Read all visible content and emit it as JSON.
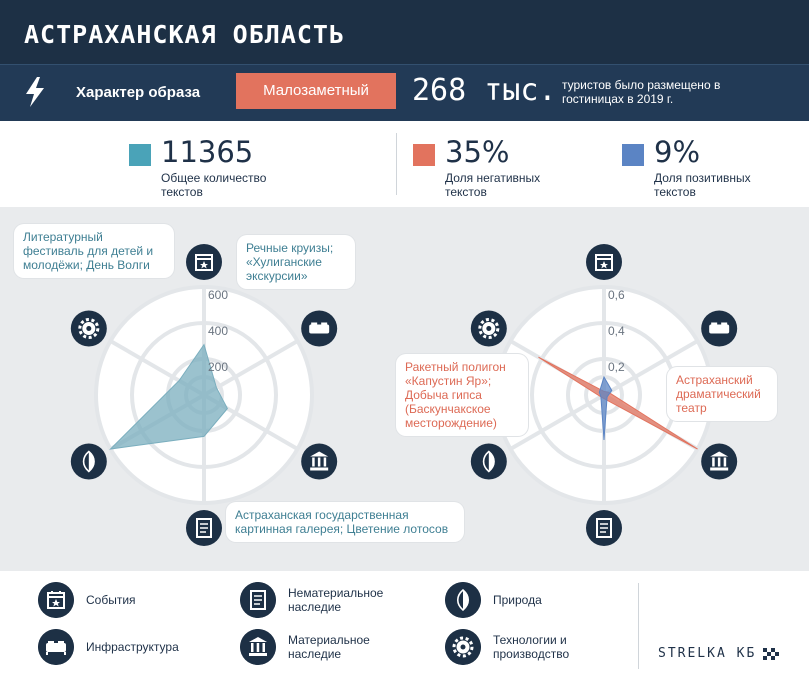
{
  "header": {
    "title": "АСТРАХАНСКАЯ ОБЛАСТЬ"
  },
  "character": {
    "label": "Характер образа",
    "value": "Малозаметный",
    "tourists_number": "268 тыс.",
    "tourists_text": "туристов было размещено в гостиницах в 2019 г."
  },
  "stats": [
    {
      "value": "11365",
      "label": "Общее количество текстов",
      "color": "#4aa3b8"
    },
    {
      "value": "35%",
      "label": "Доля негативных текстов",
      "color": "#e2735e"
    },
    {
      "value": "9%",
      "label": "Доля позитивных текстов",
      "color": "#5b84c4"
    }
  ],
  "chart_data": [
    {
      "type": "radar",
      "axes": [
        "События",
        "Инфраструктура",
        "Материальное наследие",
        "Нематериальное наследие",
        "Природа",
        "Технологии и производство"
      ],
      "rmax": 600,
      "ticks": [
        "200",
        "400",
        "600"
      ],
      "tick_values": [
        200,
        400,
        600
      ],
      "series": [
        {
          "values": [
            280,
            80,
            150,
            230,
            600,
            160
          ],
          "color": "#7aaebe"
        }
      ],
      "callouts": {
        "events": "Литературный фестиваль для детей и молодёжи; День Волги",
        "infrastructure": "Речные круизы; «Хулиганские экскурсии»",
        "intangible": "Астраханская государственная картинная галерея; Цветение лотосов"
      }
    },
    {
      "type": "radar",
      "axes": [
        "События",
        "Инфраструктура",
        "Материальное наследие",
        "Нематериальное наследие",
        "Природа",
        "Технологии и производство"
      ],
      "rmax": 0.6,
      "ticks": [
        "0,2",
        "0,4",
        "0,6"
      ],
      "tick_values": [
        0.2,
        0.4,
        0.6
      ],
      "series": [
        {
          "values": [
            0.02,
            0.03,
            0.6,
            0.02,
            0.02,
            0.42
          ],
          "color": "#e2735e"
        },
        {
          "values": [
            0.1,
            0.05,
            0.02,
            0.25,
            0.02,
            0.03
          ],
          "color": "#5b84c4"
        }
      ],
      "callouts": {
        "technology": "Ракетный полигон «Капустин Яр»; Добыча гипса (Баскунчакское месторождение)",
        "tangible": "Астраханский драматический театр"
      }
    }
  ],
  "legend": [
    {
      "icon": "events-icon",
      "label": "События"
    },
    {
      "icon": "infrastructure-icon",
      "label": "Инфраструктура"
    },
    {
      "icon": "intangible-heritage-icon",
      "label": "Нематериальное наследие"
    },
    {
      "icon": "tangible-heritage-icon",
      "label": "Материальное наследие"
    },
    {
      "icon": "nature-icon",
      "label": "Природа"
    },
    {
      "icon": "technology-icon",
      "label": "Технологии и производство"
    }
  ],
  "brand": "STRELKA КБ"
}
